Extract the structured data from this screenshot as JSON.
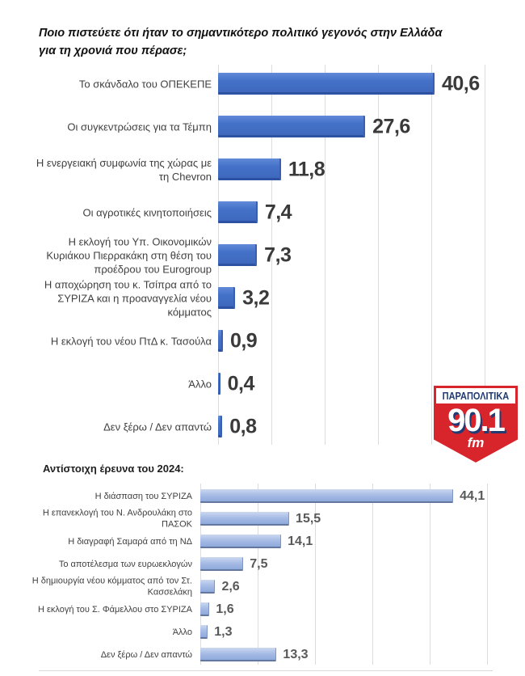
{
  "page": {
    "background": "#ffffff"
  },
  "chart_data": [
    {
      "type": "bar",
      "orientation": "horizontal",
      "title": "Ποιο πιστεύετε ότι ήταν το σημαντικότερο πολιτικό γεγονός στην Ελλάδα για τη χρονιά που πέρασε;",
      "categories": [
        "Το σκάνδαλο του ΟΠΕΚΕΠΕ",
        "Οι συγκεντρώσεις για τα Τέμπη",
        "Η ενεργειακή συμφωνία της χώρας με τη Chevron",
        "Οι αγροτικές κινητοποιήσεις",
        "Η εκλογή του Υπ. Οικονομικών Κυριάκου Πιερρακάκη στη θέση του προέδρου του Eurogroup",
        "Η αποχώρηση του κ. Τσίπρα από το ΣΥΡΙΖΑ και η προαναγγελία νέου κόμματος",
        "Η εκλογή του νέου ΠτΔ κ. Τασούλα",
        "Άλλο",
        "Δεν ξέρω / Δεν απαντώ"
      ],
      "values": [
        40.6,
        27.6,
        11.8,
        7.4,
        7.3,
        3.2,
        0.9,
        0.4,
        0.8
      ],
      "value_labels": [
        "40,6",
        "27,6",
        "11,8",
        "7,4",
        "7,3",
        "3,2",
        "0,9",
        "0,4",
        "0,8"
      ],
      "xlim": [
        0,
        50
      ],
      "gridline_step": 10,
      "grid": true,
      "legend": false,
      "bar_color": "#4472c4"
    },
    {
      "type": "bar",
      "orientation": "horizontal",
      "title": "Αντίστοιχη έρευνα του 2024:",
      "categories": [
        "Η διάσπαση του ΣΥΡΙΖΑ",
        "Η επανεκλογή του Ν. Ανδρουλάκη στο ΠΑΣΟΚ",
        "Η διαγραφή Σαμαρά από τη ΝΔ",
        "Το αποτέλεσμα των ευρωεκλογών",
        "Η δημιουργία νέου κόμματος από τον Στ. Κασσελάκη",
        "Η εκλογή του Σ. Φάμελλου στο ΣΥΡΙΖΑ",
        "Άλλο",
        "Δεν ξέρω / Δεν απαντώ"
      ],
      "values": [
        44.1,
        15.5,
        14.1,
        7.5,
        2.6,
        1.6,
        1.3,
        13.3
      ],
      "value_labels": [
        "44,1",
        "15,5",
        "14,1",
        "7,5",
        "2,6",
        "1,6",
        "1,3",
        "13,3"
      ],
      "xlim": [
        0,
        50
      ],
      "gridline_step": 10,
      "grid": true,
      "legend": false,
      "bar_color": "#8ea9db"
    }
  ],
  "logo": {
    "station": "ΠΑΡΑΠΟΛΙΤΙΚΑ",
    "frequency": "90.1",
    "band": "fm",
    "colors": {
      "red": "#d8252c",
      "navy": "#203a72"
    }
  }
}
